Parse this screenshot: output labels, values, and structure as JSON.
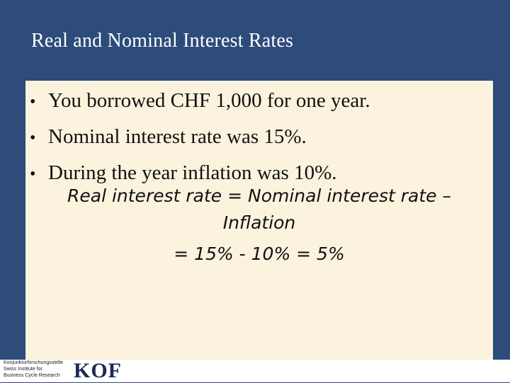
{
  "slide": {
    "title": "Real and Nominal Interest Rates"
  },
  "bullets": [
    "You borrowed CHF 1,000 for one year.",
    "Nominal interest rate was 15%.",
    "During the year inflation was 10%."
  ],
  "bullet_symbol": "•",
  "formula": {
    "line1": "Real interest rate = Nominal interest rate –",
    "line2": "Inflation",
    "line3": "= 15% - 10% = 5%"
  },
  "footer": {
    "org_line1": "Konjunkturforschungsstelle",
    "org_line2": "Swiss Institute for",
    "org_line3": "Business Cycle Research",
    "logo_text": "KOF"
  },
  "colors": {
    "background": "#2d4b7b",
    "content_box": "#fbf3dd",
    "logo": "#1a2a55"
  }
}
